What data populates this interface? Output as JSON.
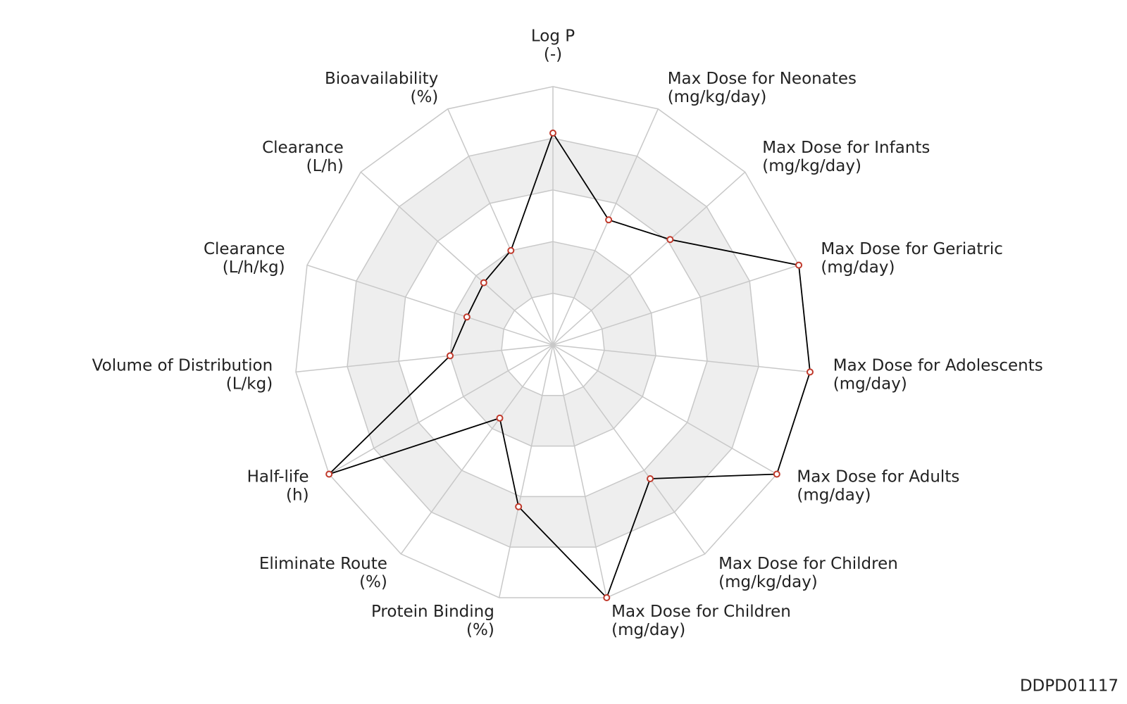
{
  "chart_data": {
    "type": "radar",
    "categories": [
      "Log P",
      "Max Dose for Neonates",
      "Max Dose for Infants",
      "Max Dose for Geriatric",
      "Max Dose for Adolescents",
      "Max Dose for Adults",
      "Max Dose for Children",
      "Max Dose for Children",
      "Protein Binding",
      "Eliminate Route",
      "Half-life",
      "Volume of Distribution",
      "Clearance",
      "Clearance",
      "Bioavailability"
    ],
    "units": [
      "(-)",
      "(mg/kg/day)",
      "(mg/kg/day)",
      "(mg/day)",
      "(mg/day)",
      "(mg/day)",
      "(mg/kg/day)",
      "(mg/day)",
      "(%)",
      "(%)",
      "(h)",
      "(L/kg)",
      "(L/h/kg)",
      "(L/h)",
      "(%)"
    ],
    "values": [
      0.82,
      0.53,
      0.61,
      1.0,
      1.0,
      1.0,
      0.64,
      1.0,
      0.64,
      0.35,
      1.0,
      0.4,
      0.35,
      0.36,
      0.4
    ],
    "color": "#000000",
    "marker_color": "#c0392b",
    "ylim": [
      0,
      1
    ],
    "yticks": [
      0.2,
      0.4,
      0.6,
      0.8,
      1
    ],
    "grid": true,
    "watermark": "DDPD01117"
  }
}
